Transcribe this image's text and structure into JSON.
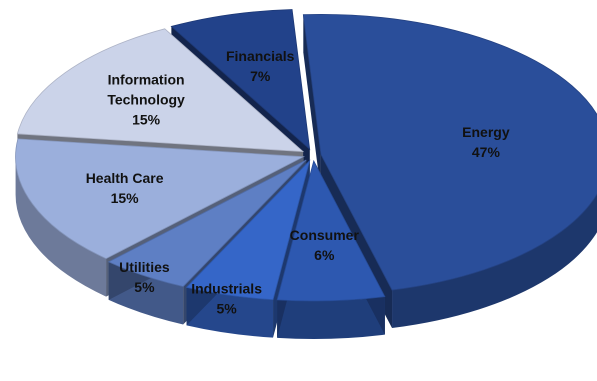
{
  "chart_data": {
    "type": "pie",
    "style": "3d-exploded",
    "title": "",
    "slices": [
      {
        "category": "Energy",
        "value": 47,
        "label": "47%",
        "color": "#2A4E9A"
      },
      {
        "category": "Consumer",
        "value": 6,
        "label": "6%",
        "color": "#2D58B0"
      },
      {
        "category": "Industrials",
        "value": 5,
        "label": "5%",
        "color": "#3566C8"
      },
      {
        "category": "Utilities",
        "value": 5,
        "label": "5%",
        "color": "#5E7FC4"
      },
      {
        "category": "Health Care",
        "value": 15,
        "label": "15%",
        "color": "#9BAFDC"
      },
      {
        "category": "Information Technology",
        "value": 15,
        "label": "15%",
        "color": "#CBD3E9"
      },
      {
        "category": "Financials",
        "value": 7,
        "label": "7%",
        "color": "#22428A"
      }
    ],
    "legend": "none",
    "data_labels": "category-and-percent"
  }
}
